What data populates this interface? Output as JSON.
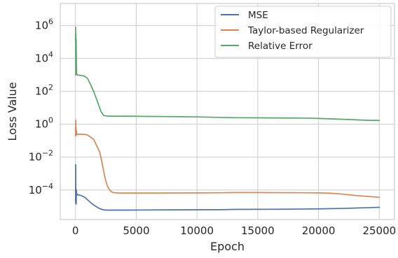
{
  "chart_data": {
    "type": "line",
    "title": "",
    "xlabel": "Epoch",
    "ylabel": "Loss Value",
    "xlim": [
      -1250,
      26250
    ],
    "ylim": [
      1.6e-06,
      22000000.0
    ],
    "yscale": "log",
    "grid": true,
    "legend_position": "top-right",
    "xticks": [
      0,
      5000,
      10000,
      15000,
      20000,
      25000
    ],
    "xtick_labels": [
      "0",
      "5000",
      "10000",
      "15000",
      "20000",
      "25000"
    ],
    "yticks": [
      0.0001,
      0.01,
      1,
      100,
      10000,
      1000000
    ],
    "ytick_labels": [
      {
        "base": "10",
        "exp": "−4"
      },
      {
        "base": "10",
        "exp": "−2"
      },
      {
        "base": "10",
        "exp": "0"
      },
      {
        "base": "10",
        "exp": "2"
      },
      {
        "base": "10",
        "exp": "4"
      },
      {
        "base": "10",
        "exp": "6"
      }
    ],
    "series": [
      {
        "name": "MSE",
        "color": "#4c72b0",
        "x": [
          0,
          10,
          20,
          30,
          45,
          60,
          80,
          100,
          150,
          200,
          300,
          500,
          800,
          1000,
          1300,
          1600,
          1900,
          2200,
          2500,
          3000,
          4000,
          6000,
          8000,
          10000,
          12000,
          13000,
          15000,
          17000,
          19000,
          20000,
          22000,
          24000,
          25000
        ],
        "y": [
          2e-05,
          2e-05,
          0.0035,
          1.5e-05,
          8e-05,
          1.4e-05,
          0.0001,
          5e-05,
          5.5e-05,
          5e-05,
          5e-05,
          4.5e-05,
          3.5e-05,
          2.5e-05,
          1.6e-05,
          1.1e-05,
          8e-06,
          6.5e-06,
          6e-06,
          6e-06,
          6e-06,
          6.1e-06,
          6.2e-06,
          6.3e-06,
          6.4e-06,
          6.6e-06,
          6.7e-06,
          6.8e-06,
          7e-06,
          7.1e-06,
          7.6e-06,
          8.4e-06,
          8.9e-06
        ]
      },
      {
        "name": "Taylor-based Regularizer",
        "color": "#dd8452",
        "x": [
          0,
          10,
          20,
          30,
          45,
          60,
          80,
          100,
          150,
          300,
          800,
          1000,
          1500,
          2000,
          2200,
          2400,
          2600,
          2800,
          3000,
          3200,
          3400,
          4000,
          6000,
          8000,
          10000,
          12000,
          13000,
          15000,
          17000,
          19000,
          20000,
          21000,
          22000,
          23000,
          24000,
          25000
        ],
        "y": [
          0.5,
          0.2,
          1.8,
          0.2,
          0.6,
          0.2,
          0.4,
          0.26,
          0.25,
          0.25,
          0.24,
          0.22,
          0.12,
          0.02,
          0.004,
          0.0007,
          0.00019,
          0.0001,
          7.5e-05,
          6.8e-05,
          6.6e-05,
          6.5e-05,
          6.5e-05,
          6.6e-05,
          6.7e-05,
          6.8e-05,
          7e-05,
          7e-05,
          6.9e-05,
          6.8e-05,
          6.7e-05,
          6.4e-05,
          5.6e-05,
          4.7e-05,
          4.1e-05,
          3.6e-05
        ]
      },
      {
        "name": "Relative Error",
        "color": "#55a868",
        "x": [
          0,
          10,
          20,
          30,
          45,
          60,
          80,
          100,
          150,
          300,
          600,
          800,
          1000,
          1200,
          1500,
          1800,
          2100,
          2300,
          2500,
          2700,
          3000,
          4000,
          6000,
          8000,
          10000,
          12000,
          13000,
          15000,
          17000,
          19000,
          20000,
          22000,
          24000,
          25000
        ],
        "y": [
          100000,
          800000,
          1000,
          300000,
          2000,
          150000,
          3000,
          1200,
          1000,
          950,
          900,
          800,
          600,
          300,
          100,
          25,
          6,
          3.5,
          3.2,
          3.1,
          3.1,
          3.1,
          3.0,
          2.9,
          2.8,
          2.6,
          2.5,
          2.45,
          2.4,
          2.35,
          2.25,
          2.0,
          1.75,
          1.7
        ]
      }
    ]
  }
}
